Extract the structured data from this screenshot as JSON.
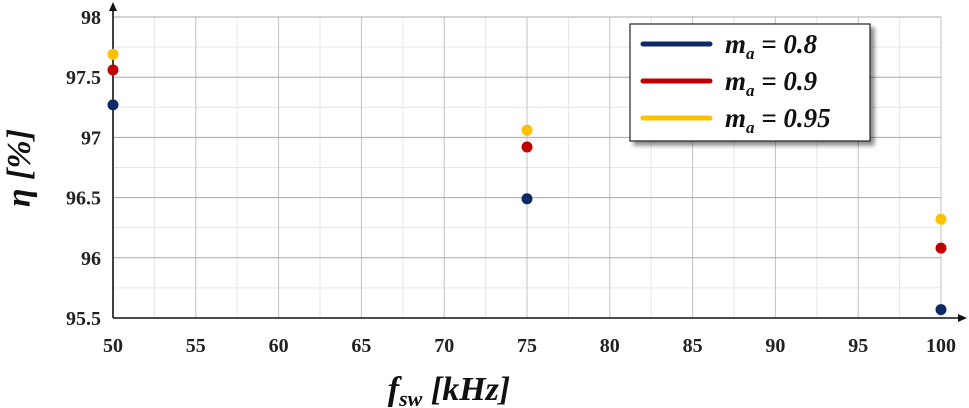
{
  "chart_data": {
    "type": "scatter",
    "title": "",
    "xlabel": {
      "main": "f",
      "sub": "sw",
      "unit": " [kHz]"
    },
    "ylabel": {
      "main": "η",
      "unit": " [%]"
    },
    "xlim": [
      50,
      100
    ],
    "ylim": [
      95.5,
      98
    ],
    "x_ticks": [
      50,
      55,
      60,
      65,
      70,
      75,
      80,
      85,
      90,
      95,
      100
    ],
    "y_ticks": [
      95.5,
      96,
      96.5,
      97,
      97.5,
      98
    ],
    "y_tick_labels": [
      "95.5",
      "96",
      "96.5",
      "97",
      "97.5",
      "98"
    ],
    "grid": true,
    "legend_position": "top-right",
    "series": [
      {
        "name": "ma = 0.8",
        "label_main": "m",
        "label_sub": "a",
        "label_rest": " = 0.8",
        "color": "#0d2a66",
        "x": [
          50,
          75,
          100
        ],
        "y": [
          97.27,
          96.49,
          95.57
        ]
      },
      {
        "name": "ma = 0.9",
        "label_main": "m",
        "label_sub": "a",
        "label_rest": " = 0.9",
        "color": "#c00000",
        "x": [
          50,
          75,
          100
        ],
        "y": [
          97.56,
          96.92,
          96.08
        ]
      },
      {
        "name": "ma = 0.95",
        "label_main": "m",
        "label_sub": "a",
        "label_rest": " = 0.95",
        "color": "#ffc000",
        "x": [
          50,
          75,
          100
        ],
        "y": [
          97.69,
          97.06,
          96.32
        ]
      }
    ]
  }
}
